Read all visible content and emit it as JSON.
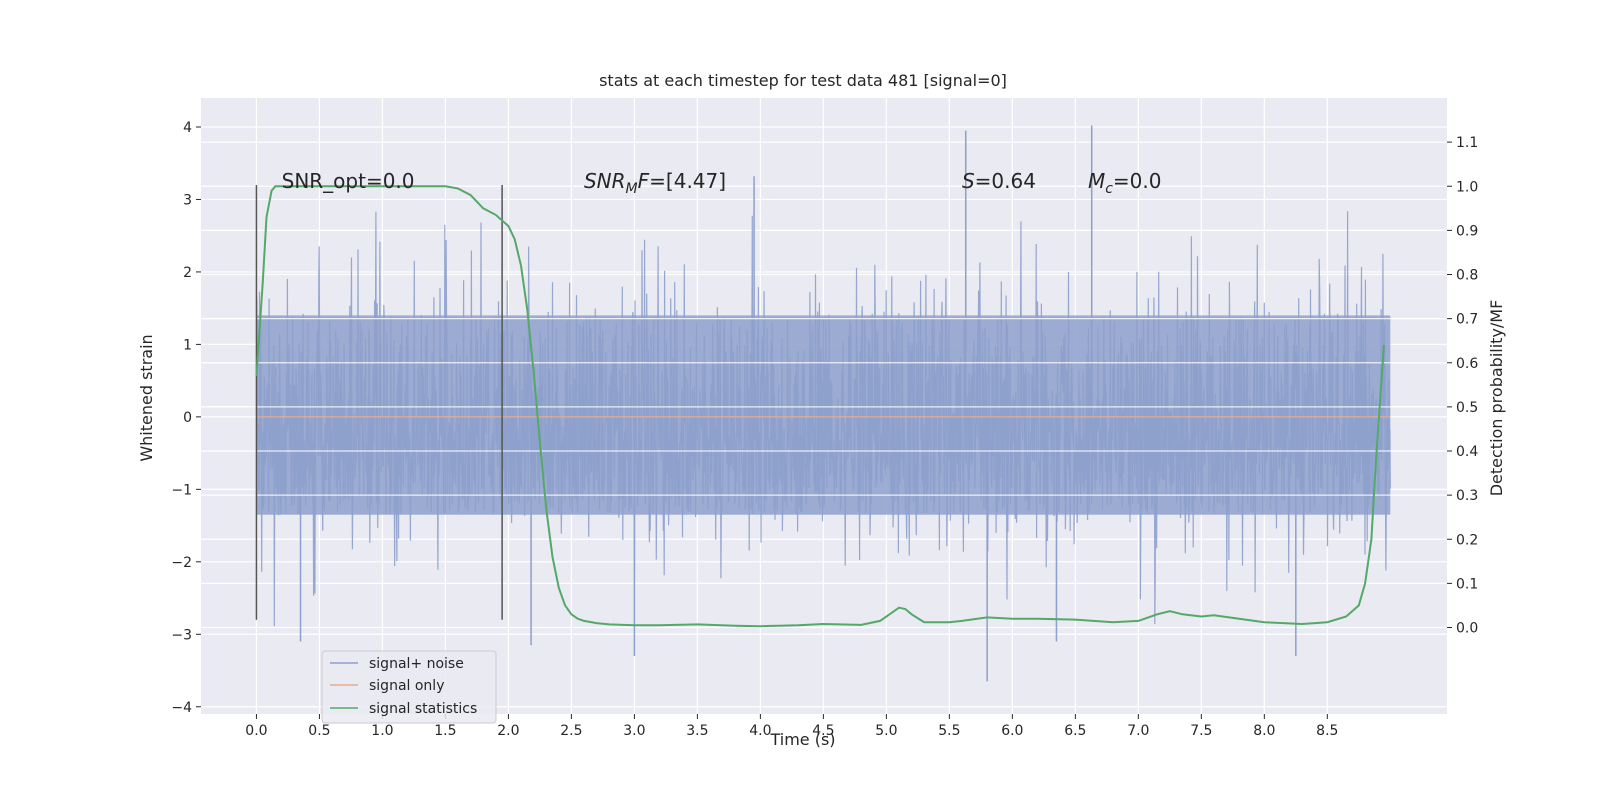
{
  "chart_data": {
    "type": "line",
    "title": "stats at each timestep for test data 481 [signal=0]",
    "xlabel": "Time (s)",
    "ylabel_left": "Whitened strain",
    "ylabel_right": "Detection probability/MF",
    "xlim": [
      -0.44,
      9.45
    ],
    "ylim_left": [
      -4.1,
      4.4
    ],
    "ylim_right": [
      -0.196,
      1.2
    ],
    "x_ticks": [
      0.0,
      0.5,
      1.0,
      1.5,
      2.0,
      2.5,
      3.0,
      3.5,
      4.0,
      4.5,
      5.0,
      5.5,
      6.0,
      6.5,
      7.0,
      7.5,
      8.0,
      8.5
    ],
    "x_tick_labels": [
      "0.0",
      "0.5",
      "1.0",
      "1.5",
      "2.0",
      "2.5",
      "3.0",
      "3.5",
      "4.0",
      "4.5",
      "5.0",
      "5.5",
      "6.0",
      "6.5",
      "7.0",
      "7.5",
      "8.0",
      "8.5"
    ],
    "y_left_ticks": [
      4,
      3,
      2,
      1,
      0,
      -1,
      -2,
      -3,
      -4
    ],
    "y_left_tick_labels": [
      "4",
      "3",
      "2",
      "1",
      "0",
      "−1",
      "−2",
      "−3",
      "−4"
    ],
    "y_right_ticks": [
      1.1,
      1.0,
      0.9,
      0.8,
      0.7,
      0.6,
      0.5,
      0.4,
      0.3,
      0.2,
      0.1,
      0.0
    ],
    "y_right_tick_labels": [
      "1.1",
      "1.0",
      "0.9",
      "0.8",
      "0.7",
      "0.6",
      "0.5",
      "0.4",
      "0.3",
      "0.2",
      "0.1",
      "0.0"
    ],
    "vertical_markers": [
      0.0,
      1.95
    ],
    "vertical_marker_range": [
      -2.8,
      3.2
    ],
    "annotations": [
      {
        "x": 0.2,
        "y": 3.2,
        "parts": [
          {
            "text": "SNR_opt=0.0",
            "italic": false
          }
        ]
      },
      {
        "x": 2.6,
        "y": 3.2,
        "parts": [
          {
            "text": "SNR",
            "italic": true
          },
          {
            "text": "M",
            "italic": true,
            "sub": true
          },
          {
            "text": "F",
            "italic": true
          },
          {
            "text": "=[4.47]",
            "italic": false
          }
        ]
      },
      {
        "x": 5.6,
        "y": 3.2,
        "parts": [
          {
            "text": "S",
            "italic": true
          },
          {
            "text": "=0.64",
            "italic": false
          }
        ]
      },
      {
        "x": 6.6,
        "y": 3.2,
        "parts": [
          {
            "text": "M",
            "italic": true
          },
          {
            "text": "c",
            "italic": true,
            "sub": true
          },
          {
            "text": "=0.0",
            "italic": false
          }
        ]
      }
    ],
    "legend": {
      "position": "lower-left",
      "entries": [
        {
          "label": "signal+ noise",
          "color": "#8da0cb"
        },
        {
          "label": "signal only",
          "color": "#e8a98e"
        },
        {
          "label": "signal statistics",
          "color": "#55a868"
        }
      ]
    },
    "series": [
      {
        "name": "signal+ noise",
        "axis": "left",
        "style": "noise",
        "color": "#8da0cb",
        "x_range": [
          0.0,
          9.0
        ],
        "core_amplitude": [
          -1.35,
          1.4
        ],
        "typical_peaks": [
          2.0,
          -2.0
        ],
        "extremes": [
          {
            "x": 5.63,
            "y": 3.95
          },
          {
            "x": 6.63,
            "y": 4.02
          },
          {
            "x": 3.95,
            "y": 3.32
          },
          {
            "x": 5.8,
            "y": -3.65
          },
          {
            "x": 0.35,
            "y": -3.1
          },
          {
            "x": 2.18,
            "y": -3.15
          },
          {
            "x": 8.25,
            "y": -3.3
          },
          {
            "x": 3.0,
            "y": -3.3
          },
          {
            "x": 6.35,
            "y": -3.1
          }
        ]
      },
      {
        "name": "signal only",
        "axis": "left",
        "color": "#e8a98e",
        "x": [
          0.0,
          9.0
        ],
        "y": [
          0.0,
          0.0
        ]
      },
      {
        "name": "signal statistics",
        "axis": "right",
        "color": "#55a868",
        "x": [
          0.0,
          0.05,
          0.08,
          0.12,
          0.15,
          0.2,
          0.3,
          0.5,
          0.8,
          1.0,
          1.2,
          1.4,
          1.5,
          1.6,
          1.7,
          1.8,
          1.9,
          2.0,
          2.05,
          2.1,
          2.15,
          2.2,
          2.25,
          2.3,
          2.35,
          2.4,
          2.45,
          2.5,
          2.55,
          2.6,
          2.7,
          2.8,
          3.0,
          3.2,
          3.5,
          3.8,
          4.0,
          4.3,
          4.5,
          4.8,
          4.95,
          5.1,
          5.15,
          5.2,
          5.3,
          5.5,
          5.6,
          5.8,
          6.0,
          6.2,
          6.5,
          6.8,
          7.0,
          7.15,
          7.25,
          7.35,
          7.5,
          7.6,
          7.8,
          8.0,
          8.3,
          8.5,
          8.65,
          8.75,
          8.8,
          8.85,
          8.88,
          8.92,
          8.95
        ],
        "y": [
          0.57,
          0.78,
          0.93,
          0.99,
          1.0,
          1.0,
          1.0,
          1.0,
          1.0,
          1.0,
          1.0,
          1.0,
          1.0,
          0.995,
          0.98,
          0.95,
          0.935,
          0.91,
          0.88,
          0.82,
          0.72,
          0.58,
          0.42,
          0.27,
          0.16,
          0.09,
          0.05,
          0.03,
          0.02,
          0.015,
          0.01,
          0.007,
          0.005,
          0.005,
          0.007,
          0.004,
          0.003,
          0.005,
          0.008,
          0.006,
          0.015,
          0.045,
          0.042,
          0.03,
          0.012,
          0.012,
          0.015,
          0.023,
          0.02,
          0.02,
          0.018,
          0.012,
          0.015,
          0.03,
          0.037,
          0.03,
          0.025,
          0.028,
          0.02,
          0.012,
          0.008,
          0.012,
          0.025,
          0.05,
          0.1,
          0.2,
          0.35,
          0.52,
          0.64
        ]
      }
    ]
  }
}
